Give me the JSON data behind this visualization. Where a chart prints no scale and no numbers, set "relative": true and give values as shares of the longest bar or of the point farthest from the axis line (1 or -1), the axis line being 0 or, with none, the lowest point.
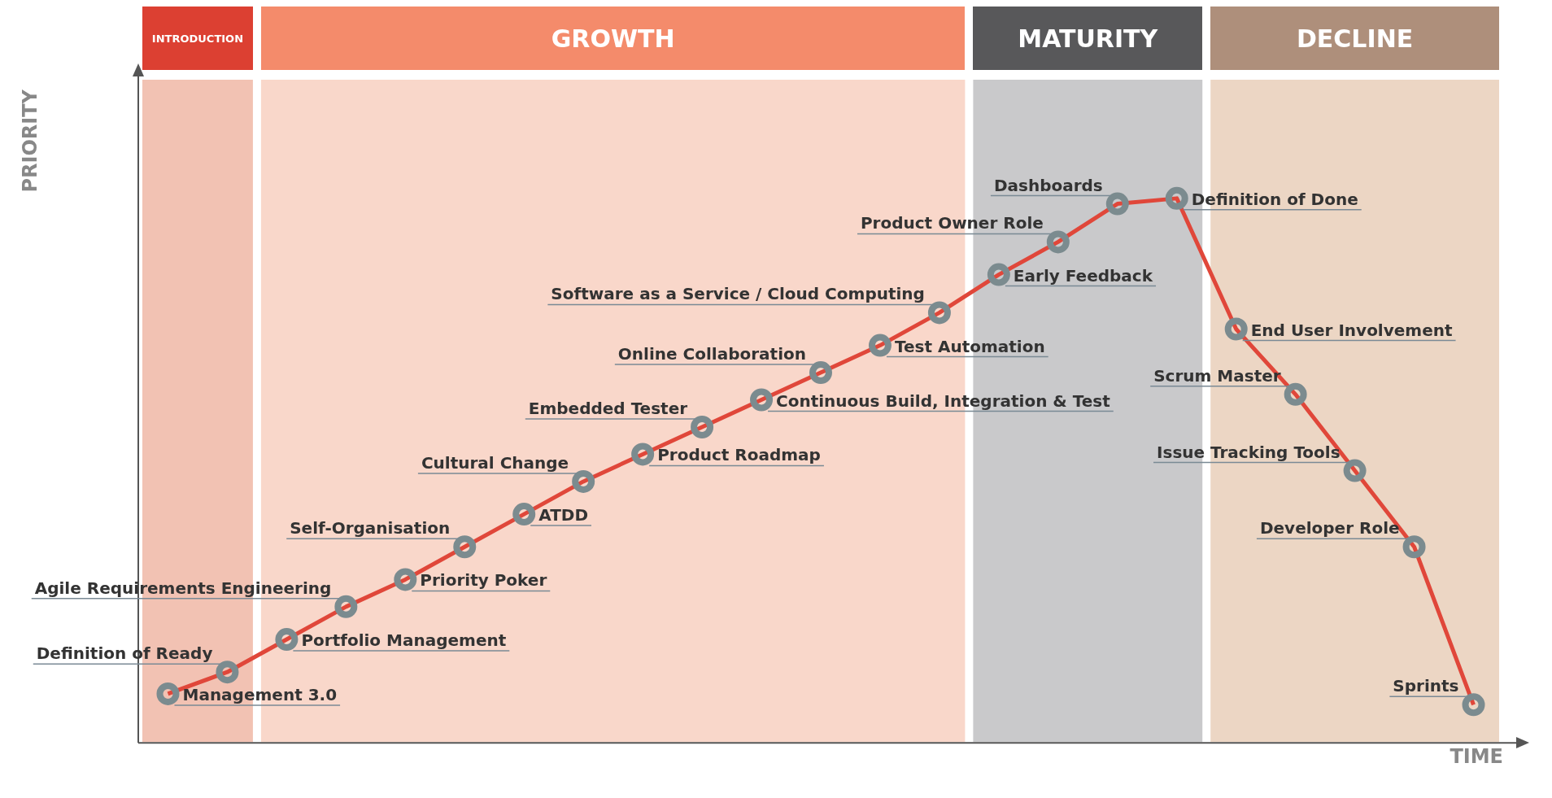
{
  "chart_data": {
    "type": "line",
    "relative": true,
    "xlabel": "TIME",
    "ylabel": "PRIORITY",
    "tick_labels": false,
    "legend": false,
    "marker": "circle",
    "line_style": "solid",
    "categories": [
      null,
      null,
      null,
      null,
      null,
      null,
      null,
      null,
      null,
      null,
      null,
      null,
      null,
      null,
      null,
      null,
      null,
      null,
      null,
      null,
      null,
      null,
      null
    ],
    "series": [
      {
        "color": "#e0473a",
        "values": [
          0.09,
          0.13,
          0.19,
          0.25,
          0.3,
          0.36,
          0.42,
          0.48,
          0.53,
          0.58,
          0.63,
          0.68,
          0.73,
          0.79,
          0.86,
          0.92,
          0.99,
          1,
          0.76,
          0.64,
          0.5,
          0.36,
          0.07
        ]
      }
    ],
    "annotations": [
      "Management 3.0",
      "Definition of Ready",
      "Portfolio Management",
      "Agile Requirements Engineering",
      "Priority Poker",
      "Self-Organisation",
      "ATDD",
      "Cultural Change",
      "Product Roadmap",
      "Embedded Tester",
      "Continuous Build, Integration & Test",
      "Online Collaboration",
      "Test Automation",
      "Software as a Service / Cloud Computing",
      "Early Feedback",
      "Product Owner Role",
      "Dashboards",
      "Definition of Done",
      "End User Involvement",
      "Scrum Master",
      "Issue Tracking Tools",
      "Developer Role",
      "Sprints",
      "INTRODUCTION",
      "GROWTH",
      "MATURITY",
      "DECLINE"
    ]
  }
}
